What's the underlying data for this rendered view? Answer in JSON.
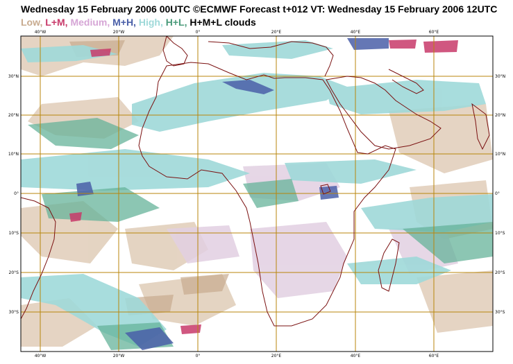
{
  "title": "Wednesday 15 February 2006 00UTC ©ECMWF Forecast t+012 VT: Wednesday 15 February 2006 12UTC",
  "legend": {
    "items": [
      {
        "label": "Low,",
        "color": "#c8ab8f"
      },
      {
        "label": "L+M,",
        "color": "#c83a6a"
      },
      {
        "label": "Medium,",
        "color": "#d6a6d6"
      },
      {
        "label": "M+H,",
        "color": "#4a5fa8"
      },
      {
        "label": "High,",
        "color": "#9fd9d9"
      },
      {
        "label": "H+L,",
        "color": "#4a9a7a"
      },
      {
        "label": "H+M+L clouds",
        "color": "#000000"
      }
    ]
  },
  "map": {
    "lon_labels": [
      "40°W",
      "20°W",
      "0°",
      "20°E",
      "40°E",
      "60°E"
    ],
    "lat_labels": [
      "30°N",
      "20°N",
      "10°N",
      "0°",
      "10°S",
      "20°S",
      "30°S"
    ],
    "grid_color": "#b8860b",
    "coast_color": "#7a1010"
  }
}
